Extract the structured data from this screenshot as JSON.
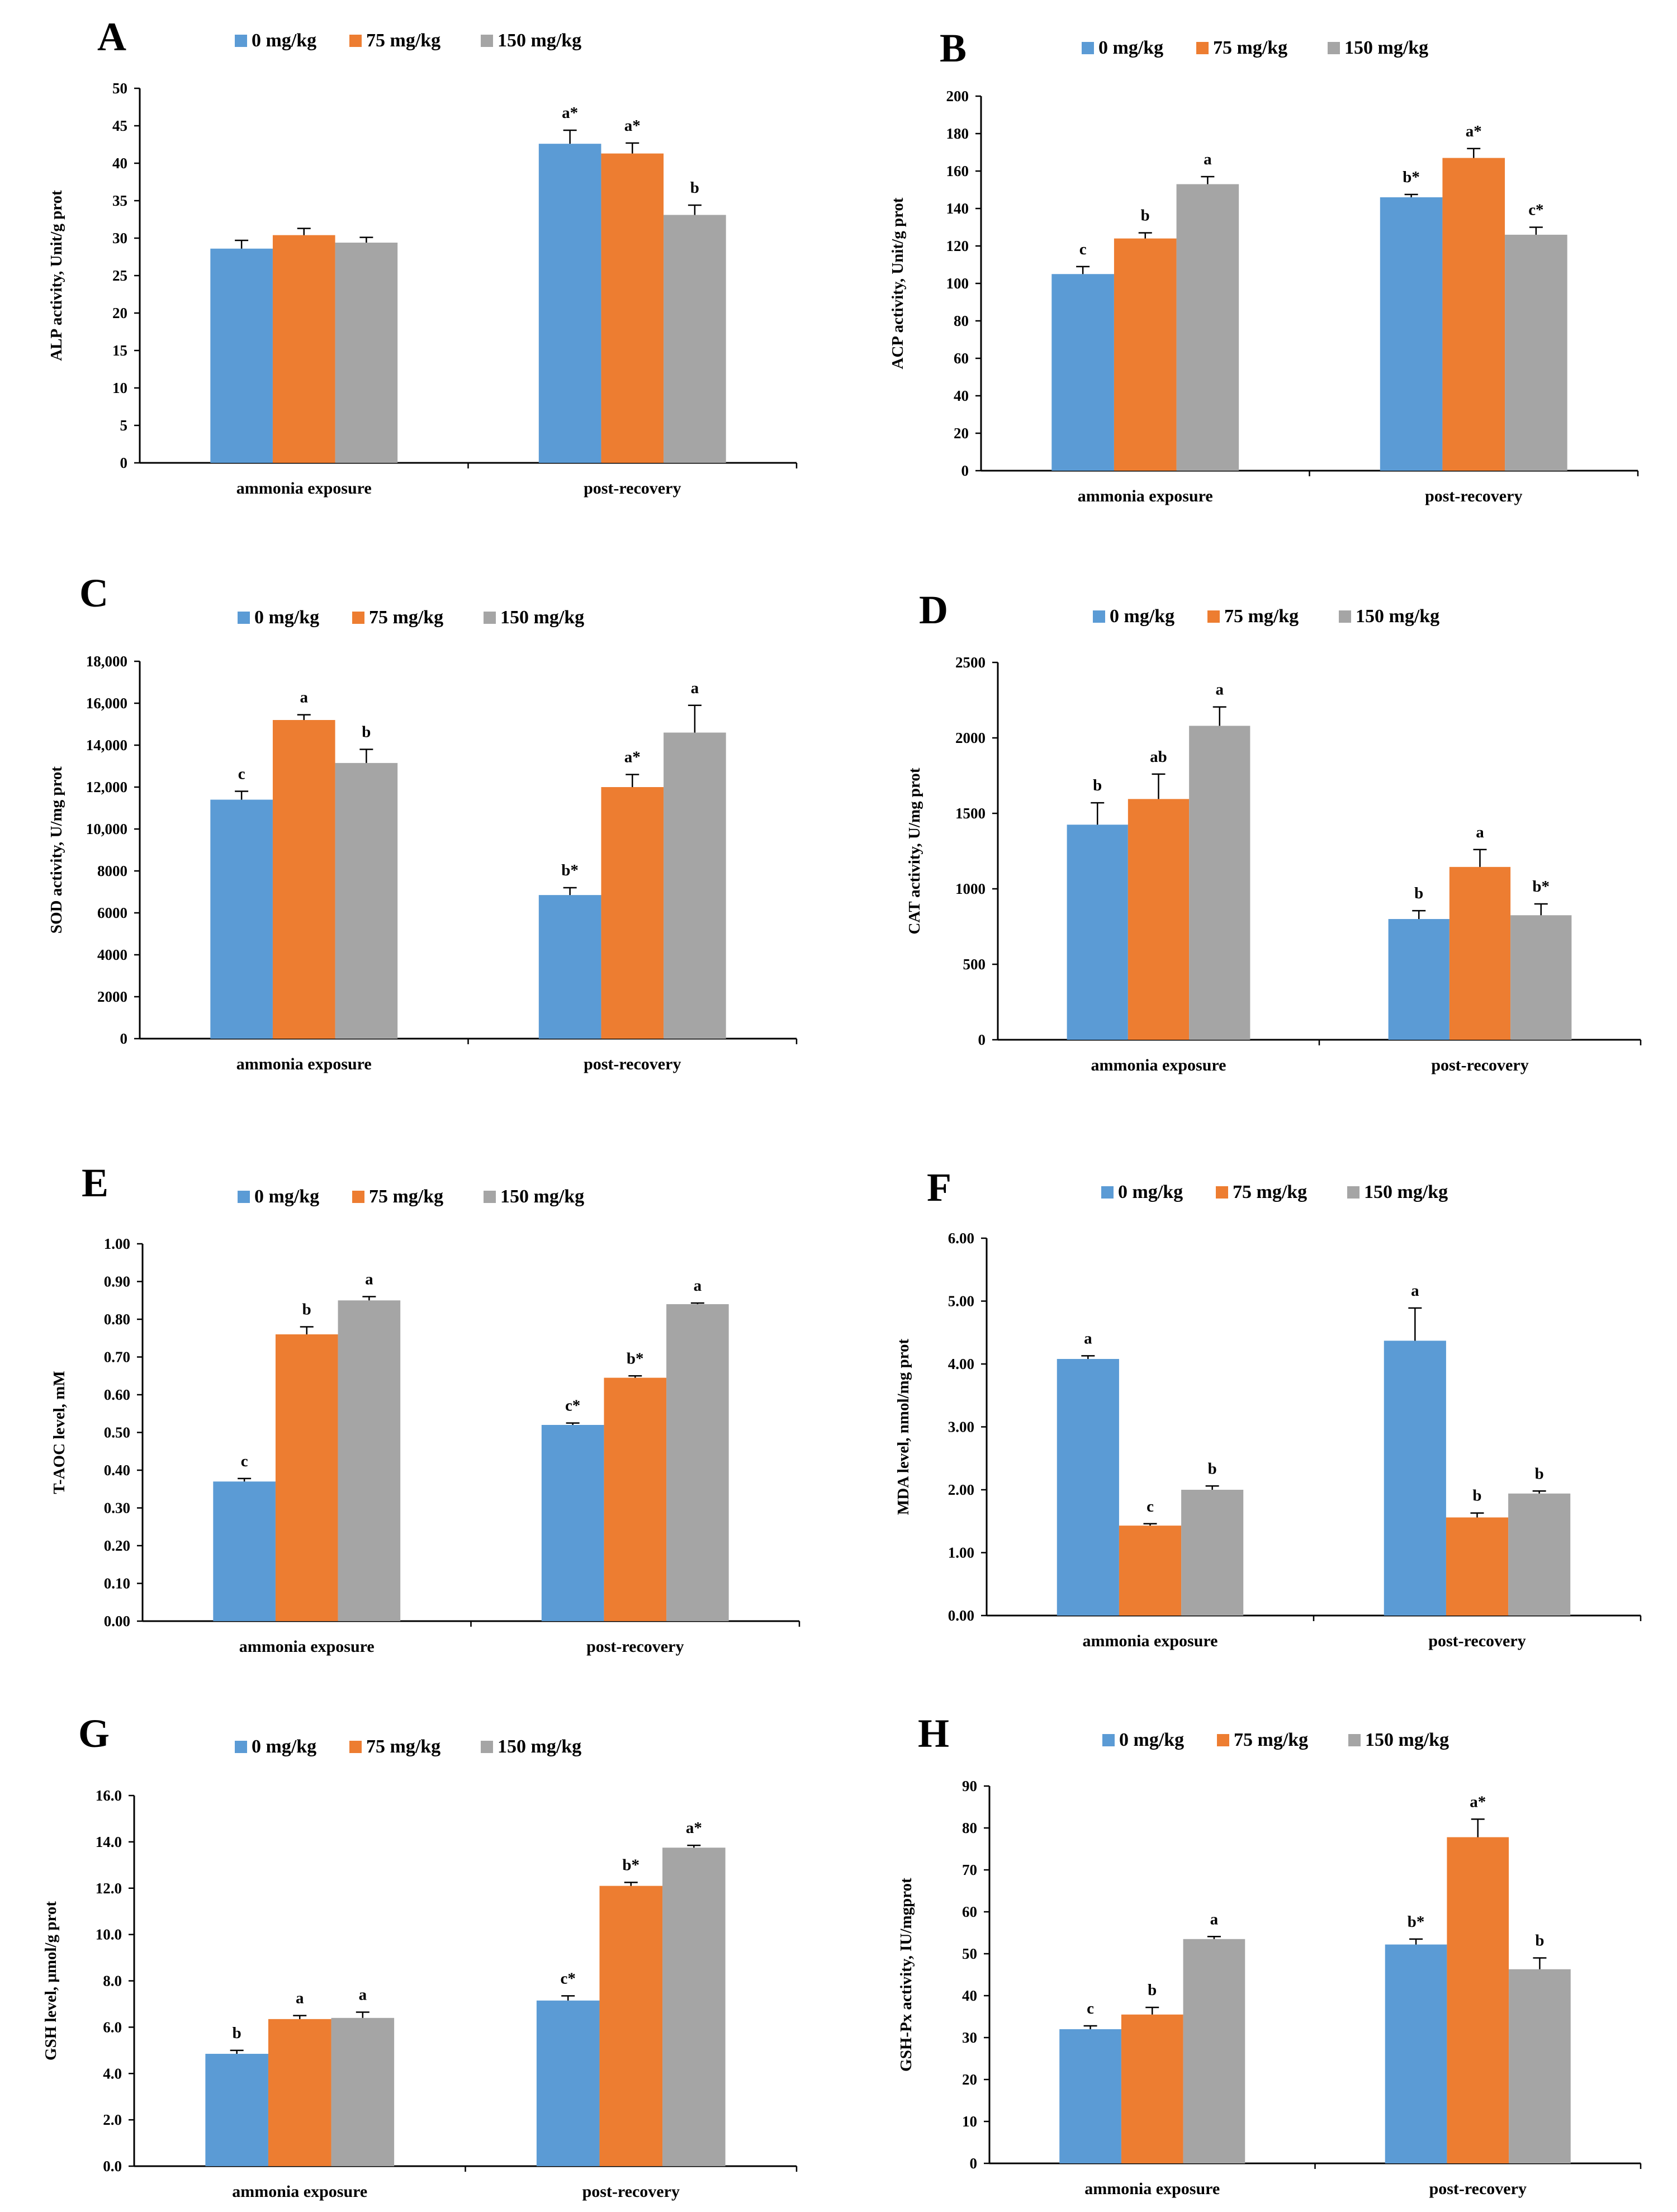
{
  "legend": [
    "0 mg/kg",
    "75 mg/kg",
    "150 mg/kg"
  ],
  "colors": [
    "#5b9bd5",
    "#ed7d31",
    "#a5a5a5"
  ],
  "chart_data": [
    {
      "type": "bar",
      "panel": "A",
      "ylabel": "ALP activity, Unit/g prot",
      "categories": [
        "ammonia exposure",
        "post-recovery"
      ],
      "ylim": [
        0,
        50
      ],
      "yticks": [
        "0",
        "5",
        "10",
        "15",
        "20",
        "25",
        "30",
        "35",
        "40",
        "45",
        "50"
      ],
      "series": [
        {
          "name": "0 mg/kg",
          "values": [
            28.6,
            42.6
          ],
          "errors": [
            1.1,
            1.8
          ],
          "labels": [
            "",
            "a*"
          ]
        },
        {
          "name": "75 mg/kg",
          "values": [
            30.4,
            41.3
          ],
          "errors": [
            0.9,
            1.4
          ],
          "labels": [
            "",
            "a*"
          ]
        },
        {
          "name": "150 mg/kg",
          "values": [
            29.4,
            33.1
          ],
          "errors": [
            0.7,
            1.3
          ],
          "labels": [
            "",
            "b"
          ]
        }
      ]
    },
    {
      "type": "bar",
      "panel": "B",
      "ylabel": "ACP activity, Unit/g prot",
      "categories": [
        "ammonia exposure",
        "post-recovery"
      ],
      "ylim": [
        0,
        200
      ],
      "yticks": [
        "0",
        "20",
        "40",
        "60",
        "80",
        "100",
        "120",
        "140",
        "160",
        "180",
        "200"
      ],
      "series": [
        {
          "name": "0 mg/kg",
          "values": [
            105,
            146
          ],
          "errors": [
            4,
            1.5
          ],
          "labels": [
            "c",
            "b*"
          ]
        },
        {
          "name": "75 mg/kg",
          "values": [
            124,
            167
          ],
          "errors": [
            3,
            5
          ],
          "labels": [
            "b",
            "a*"
          ]
        },
        {
          "name": "150 mg/kg",
          "values": [
            153,
            126
          ],
          "errors": [
            4,
            4
          ],
          "labels": [
            "a",
            "c*"
          ]
        }
      ]
    },
    {
      "type": "bar",
      "panel": "C",
      "ylabel": "SOD activity, U/mg prot",
      "categories": [
        "ammonia exposure",
        "post-recovery"
      ],
      "ylim": [
        0,
        18000
      ],
      "yticks": [
        "0",
        "2000",
        "4000",
        "6000",
        "8000",
        "10,000",
        "12,000",
        "14,000",
        "16,000",
        "18,000"
      ],
      "series": [
        {
          "name": "0 mg/kg",
          "values": [
            11400,
            6850
          ],
          "errors": [
            400,
            350
          ],
          "labels": [
            "c",
            "b*"
          ]
        },
        {
          "name": "75 mg/kg",
          "values": [
            15200,
            12000
          ],
          "errors": [
            250,
            600
          ],
          "labels": [
            "a",
            "a*"
          ]
        },
        {
          "name": "150 mg/kg",
          "values": [
            13150,
            14600
          ],
          "errors": [
            650,
            1300
          ],
          "labels": [
            "b",
            "a"
          ]
        }
      ]
    },
    {
      "type": "bar",
      "panel": "D",
      "ylabel": "CAT activity, U/mg prot",
      "categories": [
        "ammonia exposure",
        "post-recovery"
      ],
      "ylim": [
        0,
        2500
      ],
      "yticks": [
        "0",
        "500",
        "1000",
        "1500",
        "2000",
        "2500"
      ],
      "series": [
        {
          "name": "0 mg/kg",
          "values": [
            1425,
            800
          ],
          "errors": [
            145,
            55
          ],
          "labels": [
            "b",
            "b"
          ]
        },
        {
          "name": "75 mg/kg",
          "values": [
            1595,
            1145
          ],
          "errors": [
            165,
            115
          ],
          "labels": [
            "ab",
            "a"
          ]
        },
        {
          "name": "150 mg/kg",
          "values": [
            2080,
            825
          ],
          "errors": [
            125,
            75
          ],
          "labels": [
            "a",
            "b*"
          ]
        }
      ]
    },
    {
      "type": "bar",
      "panel": "E",
      "ylabel": "T-AOC level, mM",
      "categories": [
        "ammonia exposure",
        "post-recovery"
      ],
      "ylim": [
        0,
        1.0
      ],
      "yticks": [
        "0.00",
        "0.10",
        "0.20",
        "0.30",
        "0.40",
        "0.50",
        "0.60",
        "0.70",
        "0.80",
        "0.90",
        "1.00"
      ],
      "series": [
        {
          "name": "0 mg/kg",
          "values": [
            0.37,
            0.52
          ],
          "errors": [
            0.008,
            0.005
          ],
          "labels": [
            "c",
            "c*"
          ]
        },
        {
          "name": "75 mg/kg",
          "values": [
            0.76,
            0.645
          ],
          "errors": [
            0.02,
            0.005
          ],
          "labels": [
            "b",
            "b*"
          ]
        },
        {
          "name": "150 mg/kg",
          "values": [
            0.85,
            0.84
          ],
          "errors": [
            0.01,
            0.003
          ],
          "labels": [
            "a",
            "a"
          ]
        }
      ]
    },
    {
      "type": "bar",
      "panel": "F",
      "ylabel": "MDA level, nmol/mg prot",
      "categories": [
        "ammonia exposure",
        "post-recovery"
      ],
      "ylim": [
        0,
        6.0
      ],
      "yticks": [
        "0.00",
        "1.00",
        "2.00",
        "3.00",
        "4.00",
        "5.00",
        "6.00"
      ],
      "series": [
        {
          "name": "0 mg/kg",
          "values": [
            4.08,
            4.37
          ],
          "errors": [
            0.05,
            0.52
          ],
          "labels": [
            "a",
            "a"
          ]
        },
        {
          "name": "75 mg/kg",
          "values": [
            1.43,
            1.56
          ],
          "errors": [
            0.03,
            0.07
          ],
          "labels": [
            "c",
            "b"
          ]
        },
        {
          "name": "150 mg/kg",
          "values": [
            2.0,
            1.94
          ],
          "errors": [
            0.06,
            0.04
          ],
          "labels": [
            "b",
            "b"
          ]
        }
      ]
    },
    {
      "type": "bar",
      "panel": "G",
      "ylabel": "GSH level, μmol/g prot",
      "categories": [
        "ammonia exposure",
        "post-recovery"
      ],
      "ylim": [
        0,
        16
      ],
      "yticks": [
        "0.0",
        "2.0",
        "4.0",
        "6.0",
        "8.0",
        "10.0",
        "12.0",
        "14.0",
        "16.0"
      ],
      "series": [
        {
          "name": "0 mg/kg",
          "values": [
            4.85,
            7.15
          ],
          "errors": [
            0.15,
            0.2
          ],
          "labels": [
            "b",
            "c*"
          ]
        },
        {
          "name": "75 mg/kg",
          "values": [
            6.35,
            12.1
          ],
          "errors": [
            0.15,
            0.15
          ],
          "labels": [
            "a",
            "b*"
          ]
        },
        {
          "name": "150 mg/kg",
          "values": [
            6.4,
            13.75
          ],
          "errors": [
            0.25,
            0.1
          ],
          "labels": [
            "a",
            "a*"
          ]
        }
      ]
    },
    {
      "type": "bar",
      "panel": "H",
      "ylabel": "GSH-Px activity, IU/mgprot",
      "categories": [
        "ammonia exposure",
        "post-recovery"
      ],
      "ylim": [
        0,
        90
      ],
      "yticks": [
        "0",
        "10",
        "20",
        "30",
        "40",
        "50",
        "60",
        "70",
        "80",
        "90"
      ],
      "series": [
        {
          "name": "0 mg/kg",
          "values": [
            32,
            52.2
          ],
          "errors": [
            0.8,
            1.3
          ],
          "labels": [
            "c",
            "b*"
          ]
        },
        {
          "name": "75 mg/kg",
          "values": [
            35.5,
            77.8
          ],
          "errors": [
            1.7,
            4.3
          ],
          "labels": [
            "b",
            "a*"
          ]
        },
        {
          "name": "150 mg/kg",
          "values": [
            53.5,
            46.3
          ],
          "errors": [
            0.6,
            2.7
          ],
          "labels": [
            "a",
            "b"
          ]
        }
      ]
    }
  ]
}
